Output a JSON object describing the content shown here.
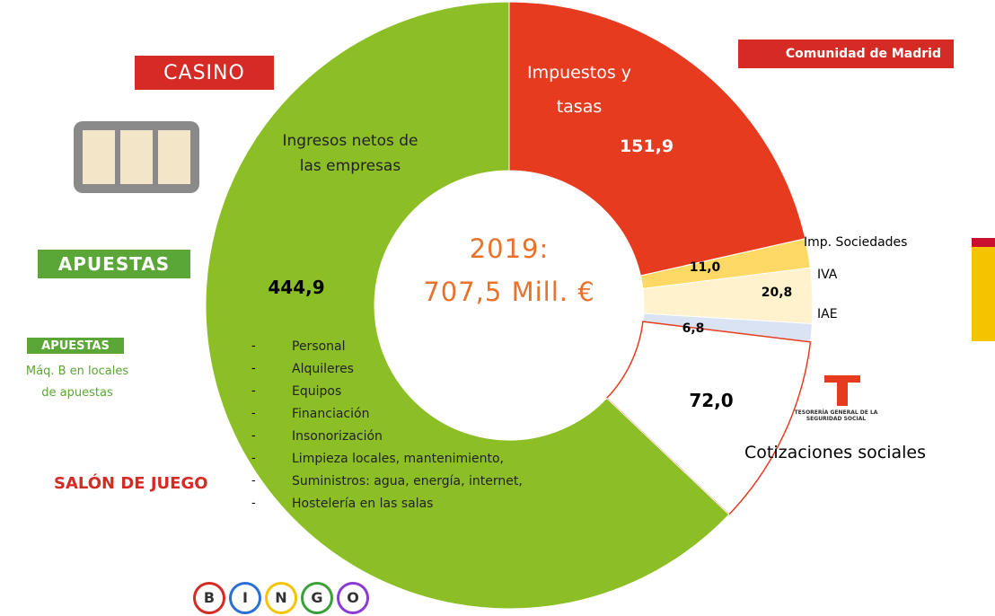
{
  "chart_data": {
    "type": "donut",
    "center_label": [
      "2019:",
      "707,5 Mill. €"
    ],
    "categories": [
      "Impuestos y tasas",
      "Imp. Sociedades",
      "IVA",
      "IAE",
      "Cotizaciones sociales",
      "Ingresos netos de las empresas"
    ],
    "values": [
      151.9,
      11.0,
      20.8,
      6.8,
      72.0,
      444.9
    ],
    "value_labels": [
      "151,9",
      "11,0",
      "20,8",
      "6,8",
      "72,0",
      "444,9"
    ],
    "colors": [
      "#e63b1f",
      "#ffd966",
      "#fff2cc",
      "#dae3f3",
      "#ffffff",
      "#8cbf26"
    ],
    "expenses": [
      "Personal",
      "Alquileres",
      "Equipos",
      "Financiación",
      "Insonorización",
      "Limpieza locales, mantenimiento,",
      "Suministros: agua, energía, internet,",
      "Hostelería en las salas"
    ],
    "logos": {
      "casino": "CASINO",
      "apuestas": "APUESTAS",
      "apuestas_small": "APUESTAS",
      "maq_b": "Máq. B en locales de apuestas",
      "salon": "SALÓN DE JUEGO",
      "bingo": [
        "B",
        "I",
        "N",
        "G",
        "O"
      ],
      "madrid": "Comunidad de Madrid",
      "tesoreria": "TESORERÍA GENERAL DE LA SEGURIDAD SOCIAL"
    }
  }
}
